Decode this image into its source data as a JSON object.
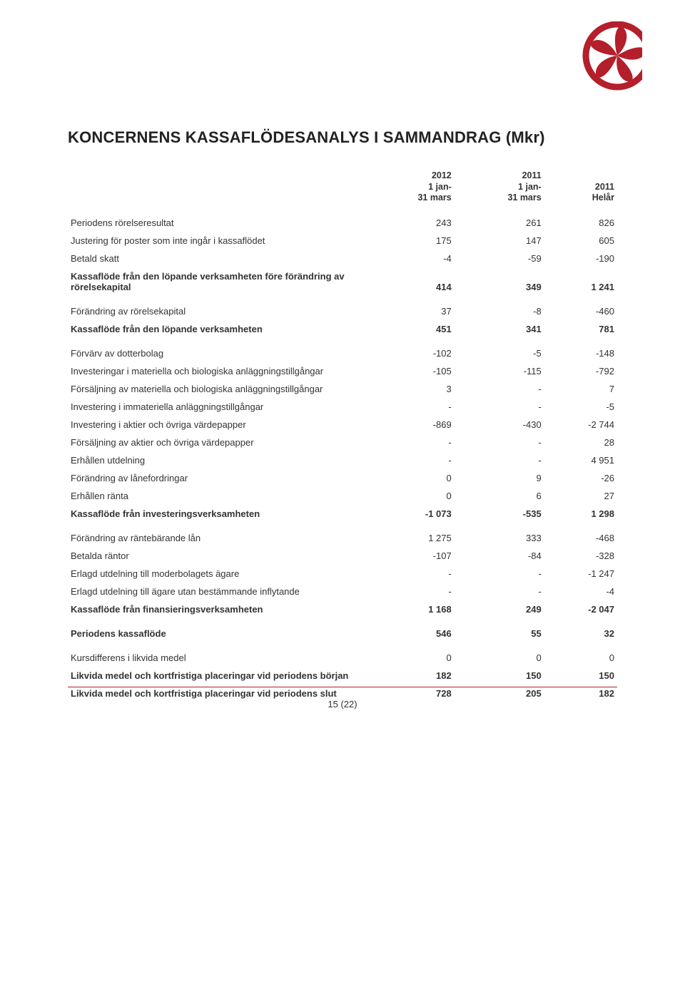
{
  "logo": {
    "ring": "#b31f2a",
    "petal": "#b31f2a"
  },
  "title": "KONCERNENS KASSAFLÖDESANALYS I SAMMANDRAG (Mkr)",
  "cols": [
    {
      "l1": "2012",
      "l2": "1 jan-",
      "l3": "31 mars"
    },
    {
      "l1": "2011",
      "l2": "1 jan-",
      "l3": "31 mars"
    },
    {
      "l1": "",
      "l2": "2011",
      "l3": "Helår"
    }
  ],
  "rows": [
    {
      "label": "Periodens rörelseresultat",
      "c": [
        "243",
        "261",
        "826"
      ],
      "cls": "sec"
    },
    {
      "label": "Justering för poster som inte ingår i kassaflödet",
      "c": [
        "175",
        "147",
        "605"
      ]
    },
    {
      "label": "Betald skatt",
      "c": [
        "-4",
        "-59",
        "-190"
      ]
    },
    {
      "label": "Kassaflöde från den löpande verksamheten före förändring av rörelsekapital",
      "c": [
        "414",
        "349",
        "1 241"
      ],
      "cls": "bold"
    },
    {
      "label": "Förändring av rörelsekapital",
      "c": [
        "37",
        "-8",
        "-460"
      ],
      "cls": "sec"
    },
    {
      "label": "Kassaflöde från den löpande verksamheten",
      "c": [
        "451",
        "341",
        "781"
      ],
      "cls": "bold"
    },
    {
      "label": "Förvärv av dotterbolag",
      "c": [
        "-102",
        "-5",
        "-148"
      ],
      "cls": "sec"
    },
    {
      "label": "Investeringar i materiella och biologiska anläggningstillgångar",
      "c": [
        "-105",
        "-115",
        "-792"
      ]
    },
    {
      "label": "Försäljning av materiella och biologiska anläggningstillgångar",
      "c": [
        "3",
        "-",
        "7"
      ]
    },
    {
      "label": "Investering i immateriella anläggningstillgångar",
      "c": [
        "-",
        "-",
        "-5"
      ]
    },
    {
      "label": "Investering i aktier och övriga värdepapper",
      "c": [
        "-869",
        "-430",
        "-2 744"
      ]
    },
    {
      "label": "Försäljning av aktier och övriga värdepapper",
      "c": [
        "-",
        "-",
        "28"
      ]
    },
    {
      "label": "Erhållen utdelning",
      "c": [
        "-",
        "-",
        "4 951"
      ]
    },
    {
      "label": "Förändring av lånefordringar",
      "c": [
        "0",
        "9",
        "-26"
      ]
    },
    {
      "label": "Erhållen ränta",
      "c": [
        "0",
        "6",
        "27"
      ]
    },
    {
      "label": "Kassaflöde från investeringsverksamheten",
      "c": [
        "-1 073",
        "-535",
        "1 298"
      ],
      "cls": "bold"
    },
    {
      "label": "Förändring av räntebärande lån",
      "c": [
        "1 275",
        "333",
        "-468"
      ],
      "cls": "sec"
    },
    {
      "label": "Betalda räntor",
      "c": [
        "-107",
        "-84",
        "-328"
      ]
    },
    {
      "label": "Erlagd utdelning till moderbolagets ägare",
      "c": [
        "-",
        "-",
        "-1 247"
      ]
    },
    {
      "label": "Erlagd utdelning till ägare utan bestämmande inflytande",
      "c": [
        "-",
        "-",
        "-4"
      ]
    },
    {
      "label": "Kassaflöde från finansieringsverksamheten",
      "c": [
        "1 168",
        "249",
        "-2 047"
      ],
      "cls": "bold"
    },
    {
      "label": "Periodens kassaflöde",
      "c": [
        "546",
        "55",
        "32"
      ],
      "cls": "bold sec"
    },
    {
      "label": "Kursdifferens i likvida medel",
      "c": [
        "0",
        "0",
        "0"
      ],
      "cls": "sec"
    },
    {
      "label": "Likvida medel och kortfristiga placeringar vid periodens början",
      "c": [
        "182",
        "150",
        "150"
      ],
      "cls": "bold"
    },
    {
      "label": "Likvida medel och kortfristiga placeringar vid periodens slut",
      "c": [
        "728",
        "205",
        "182"
      ],
      "cls": "bold"
    }
  ],
  "footer": {
    "page": "15 (22)",
    "rule": "#b31f2a"
  }
}
